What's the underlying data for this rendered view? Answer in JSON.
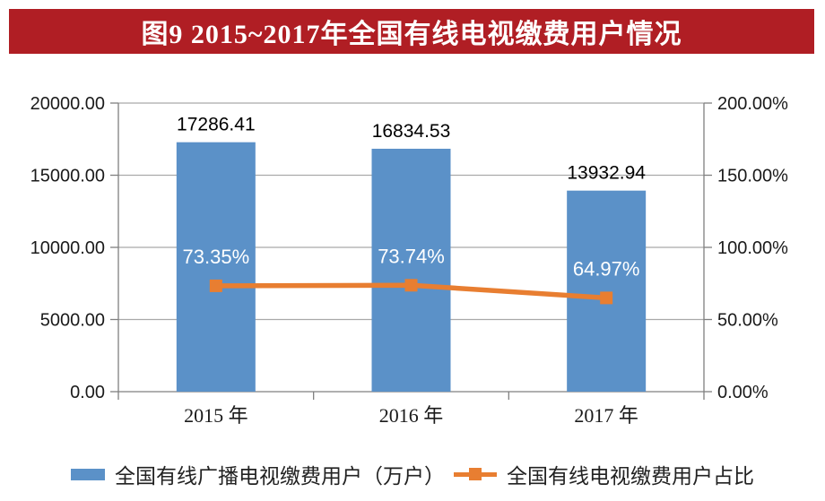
{
  "title_banner": {
    "text": "图9 2015~2017年全国有线电视缴费用户情况"
  },
  "colors": {
    "banner_red": "#B01E24",
    "title_text": "#FFFFFF",
    "bar_blue": "#5B91C8",
    "line_orange": "#E87E31",
    "grid_gray": "#A9A9A9",
    "axis_gray": "#808080",
    "value_label_black": "#000000",
    "percent_label_white": "#FFFFFF",
    "tick_label_black": "#1A1A1A"
  },
  "chart_data": {
    "type": "bar+line",
    "title": "图9 2015~2017年全国有线电视缴费用户情况",
    "categories": [
      "2015 年",
      "2016 年",
      "2017 年"
    ],
    "series": [
      {
        "name": "全国有线广播电视缴费用户（万户）",
        "type": "bar",
        "axis": "left",
        "values": [
          17286.41,
          16834.53,
          13932.94
        ],
        "labels": [
          "17286.41",
          "16834.53",
          "13932.94"
        ],
        "color": "#5B91C8"
      },
      {
        "name": "全国有线电视缴费用户占比",
        "type": "line",
        "axis": "right",
        "values": [
          73.35,
          73.74,
          64.97
        ],
        "labels": [
          "73.35%",
          "73.74%",
          "64.97%"
        ],
        "color": "#E87E31"
      }
    ],
    "left_axis": {
      "min": 0,
      "max": 20000,
      "tick_labels": [
        "0.00",
        "5000.00",
        "10000.00",
        "15000.00",
        "20000.00"
      ]
    },
    "right_axis": {
      "min": 0,
      "max": 200,
      "tick_labels": [
        "0.00%",
        "50.00%",
        "100.00%",
        "150.00%",
        "200.00%"
      ]
    },
    "grid": true,
    "legend_position": "bottom"
  }
}
